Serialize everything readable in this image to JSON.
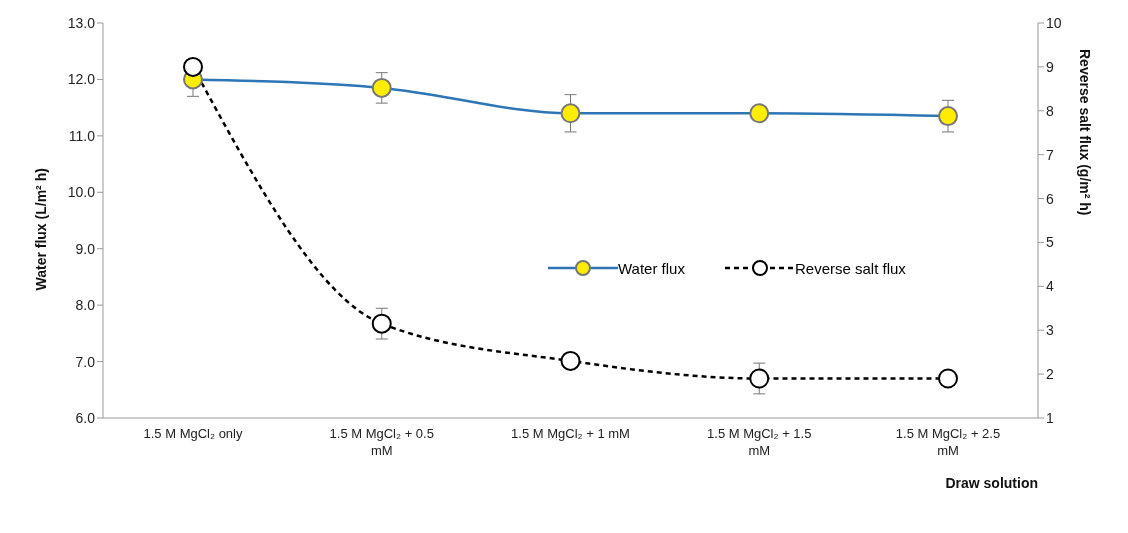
{
  "chart_data": {
    "type": "line",
    "categories": [
      "1.5 M MgCl₂ only",
      "1.5 M MgCl₂ + 0.5 mM",
      "1.5 M MgCl₂ + 1 mM",
      "1.5 M MgCl₂ + 1.5 mM",
      "1.5 M MgCl₂ + 2.5 mM"
    ],
    "xlabel": "Draw solution",
    "ylabel": "Water flux (L/m² h)",
    "y2label": "Reverse salt flux (g/m² h)",
    "series": [
      {
        "name": "Water flux",
        "color": "#2e75b6",
        "values": [
          12.0,
          11.85,
          11.4,
          11.4,
          11.35
        ],
        "errors": [
          0.3,
          0.27,
          0.33,
          0.12,
          0.28
        ],
        "line_style": "solid"
      },
      {
        "name": "Reverse salt flux",
        "color": "#000000",
        "axis": "y2",
        "values": [
          9.0,
          3.15,
          2.3,
          1.9,
          1.9
        ],
        "errors": [
          null,
          0.35,
          null,
          0.35,
          null
        ],
        "line_style": "dashed"
      }
    ],
    "ylim": [
      6,
      13
    ],
    "yticks": [
      {
        "value": 6,
        "label": "6.0"
      },
      {
        "value": 7,
        "label": "7.0"
      },
      {
        "value": 8,
        "label": "8.0"
      },
      {
        "value": 9,
        "label": "9.0"
      },
      {
        "value": 10,
        "label": "10.0"
      },
      {
        "value": 11,
        "label": "11.0"
      },
      {
        "value": 12,
        "label": "12.0"
      },
      {
        "value": 13,
        "label": "13.0"
      }
    ],
    "y2lim": [
      1,
      10
    ],
    "y2ticks": [
      1,
      2,
      3,
      4,
      5,
      6,
      7,
      8,
      9,
      10
    ],
    "grid": false,
    "legend": "right",
    "marker": "circle"
  }
}
